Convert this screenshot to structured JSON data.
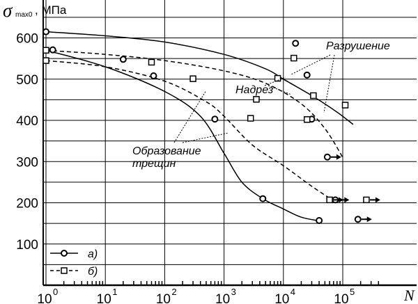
{
  "chart_data": {
    "type": "scatter",
    "title": "",
    "ylabel": {
      "symbol": "σ",
      "subscript": "max0",
      "unit": ", МПа"
    },
    "xlabel": "N",
    "x_scale": "log",
    "xlim": [
      1,
      400000
    ],
    "ylim": [
      0,
      650
    ],
    "y_ticks": [
      100,
      200,
      300,
      400,
      500,
      600
    ],
    "x_ticks": [
      {
        "value": 1,
        "base": "10",
        "exp": "0"
      },
      {
        "value": 10,
        "base": "10",
        "exp": "1"
      },
      {
        "value": 100,
        "base": "10",
        "exp": "2"
      },
      {
        "value": 1000,
        "base": "10",
        "exp": "3"
      },
      {
        "value": 10000,
        "base": "10",
        "exp": "4"
      },
      {
        "value": 100000,
        "base": "10",
        "exp": "5"
      }
    ],
    "grid": true,
    "legend": {
      "position": "bottom-left",
      "entries": [
        {
          "label": "а)",
          "marker": "circle",
          "dash": "solid"
        },
        {
          "label": "б)",
          "marker": "square",
          "dash": "dashed"
        }
      ]
    },
    "series": [
      {
        "name": "а)",
        "marker": "circle",
        "points": [
          {
            "x": 1,
            "y": 615
          },
          {
            "x": 1.3,
            "y": 571
          },
          {
            "x": 20,
            "y": 548
          },
          {
            "x": 65,
            "y": 508
          },
          {
            "x": 700,
            "y": 403
          },
          {
            "x": 4500,
            "y": 210
          },
          {
            "x": 16000,
            "y": 587
          },
          {
            "x": 25000,
            "y": 510
          },
          {
            "x": 30000,
            "y": 403
          },
          {
            "x": 40000,
            "y": 157
          },
          {
            "x": 55000,
            "y": 311,
            "runout": true
          },
          {
            "x": 75000,
            "y": 207,
            "runout": true
          },
          {
            "x": 180000,
            "y": 160,
            "runout": true
          }
        ],
        "curves": [
          {
            "name": "Разрушение",
            "points": [
              [
                1,
                615
              ],
              [
                10,
                605
              ],
              [
                100,
                590
              ],
              [
                1000,
                560
              ],
              [
                5000,
                525
              ],
              [
                10000,
                500
              ],
              [
                30000,
                460
              ],
              [
                80000,
                420
              ],
              [
                150000,
                390
              ]
            ]
          },
          {
            "name": "Образование трещин",
            "points": [
              [
                1,
                570
              ],
              [
                10,
                530
              ],
              [
                100,
                470
              ],
              [
                400,
                410
              ],
              [
                1000,
                320
              ],
              [
                2000,
                250
              ],
              [
                4500,
                210
              ],
              [
                10000,
                185
              ],
              [
                20000,
                165
              ],
              [
                45000,
                155
              ]
            ]
          }
        ]
      },
      {
        "name": "б)",
        "marker": "square",
        "points": [
          {
            "x": 1,
            "y": 570
          },
          {
            "x": 1,
            "y": 545
          },
          {
            "x": 60,
            "y": 541
          },
          {
            "x": 300,
            "y": 501
          },
          {
            "x": 2800,
            "y": 405
          },
          {
            "x": 3500,
            "y": 451
          },
          {
            "x": 8000,
            "y": 502
          },
          {
            "x": 15000,
            "y": 551
          },
          {
            "x": 25000,
            "y": 402
          },
          {
            "x": 32000,
            "y": 460
          },
          {
            "x": 60000,
            "y": 207,
            "runout": true
          },
          {
            "x": 110000,
            "y": 437
          },
          {
            "x": 250000,
            "y": 207,
            "runout": true
          }
        ],
        "curves": [
          {
            "name": "Надрез",
            "points": [
              [
                1,
                570
              ],
              [
                10,
                560
              ],
              [
                100,
                545
              ],
              [
                1000,
                520
              ],
              [
                5000,
                490
              ],
              [
                20000,
                440
              ],
              [
                50000,
                380
              ],
              [
                100000,
                310
              ]
            ]
          },
          {
            "name": "Образование трещин",
            "points": [
              [
                1,
                545
              ],
              [
                10,
                530
              ],
              [
                100,
                495
              ],
              [
                500,
                445
              ],
              [
                1000,
                410
              ],
              [
                3000,
                340
              ],
              [
                10000,
                290
              ],
              [
                30000,
                240
              ],
              [
                70000,
                205
              ]
            ]
          }
        ]
      }
    ],
    "annotations": [
      {
        "lines": [
          "Разрушение"
        ]
      },
      {
        "lines": [
          "Надрез"
        ]
      },
      {
        "lines": [
          "Образование",
          "трещин"
        ]
      }
    ]
  }
}
